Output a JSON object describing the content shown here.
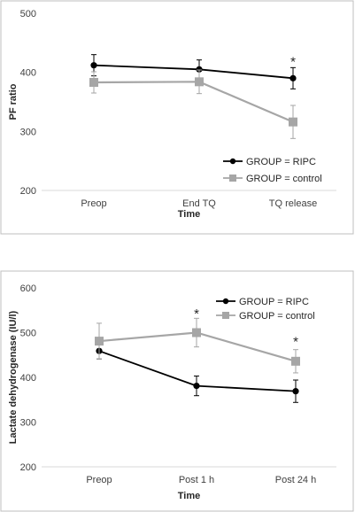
{
  "chart_data": [
    {
      "type": "line",
      "title": "",
      "xlabel": "Time",
      "ylabel": "PF ratio",
      "categories": [
        "Preop",
        "End TQ",
        "TQ release"
      ],
      "ylim": [
        200,
        500
      ],
      "yticks": [
        "200",
        "300",
        "400",
        "500"
      ],
      "grid": false,
      "legend_position": "bottom-right",
      "series": [
        {
          "name": "GROUP = RIPC",
          "values": [
            412,
            405,
            390
          ],
          "errors": [
            18,
            16,
            18
          ],
          "marker": "circle",
          "color": "#000000"
        },
        {
          "name": "GROUP = control",
          "values": [
            383,
            384,
            316
          ],
          "errors": [
            18,
            20,
            28
          ],
          "marker": "square",
          "color": "#a6a6a6"
        }
      ],
      "annotations": [
        {
          "text": "*",
          "category": "TQ release",
          "value": 420
        }
      ]
    },
    {
      "type": "line",
      "title": "",
      "xlabel": "Time",
      "ylabel": "Lactate dehydrogenase (IU/l)",
      "categories": [
        "Preop",
        "Post 1 h",
        "Post 24 h"
      ],
      "ylim": [
        200,
        600
      ],
      "yticks": [
        "200",
        "300",
        "400",
        "500",
        "600"
      ],
      "grid": false,
      "legend_position": "top-right",
      "series": [
        {
          "name": "GROUP = RIPC",
          "values": [
            459,
            381,
            369
          ],
          "errors": [
            18,
            22,
            25
          ],
          "marker": "circle",
          "color": "#000000"
        },
        {
          "name": "GROUP = control",
          "values": [
            481,
            500,
            436
          ],
          "errors": [
            40,
            32,
            26
          ],
          "marker": "square",
          "color": "#a6a6a6"
        }
      ],
      "annotations": [
        {
          "text": "*",
          "category": "Post 1 h",
          "value": 545
        },
        {
          "text": "*",
          "category": "Post 24 h",
          "value": 482
        }
      ]
    }
  ]
}
